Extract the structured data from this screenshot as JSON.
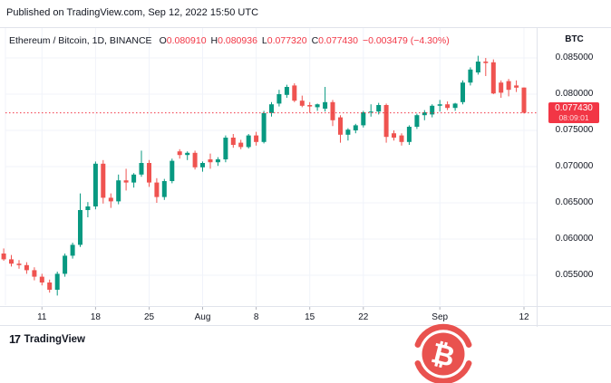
{
  "published_bar": {
    "text": "Published on TradingView.com, Sep 12, 2022 15:50 UTC"
  },
  "legend": {
    "title": "Ethereum / Bitcoin, 1D, BINANCE",
    "ohlc": [
      {
        "label": "O",
        "value": "0.080910"
      },
      {
        "label": "H",
        "value": "0.080936"
      },
      {
        "label": "L",
        "value": "0.077320"
      },
      {
        "label": "C",
        "value": "0.077430"
      }
    ],
    "change": "−0.003479 (−4.30%)"
  },
  "price_axis": {
    "unit": "BTC",
    "tag": {
      "price": "0.077430",
      "countdown": "08:09:01"
    }
  },
  "footer": {
    "logo_mark": "17",
    "logo_text": "TradingView"
  },
  "badge": {
    "symbol": "₿"
  },
  "colors": {
    "up": "#089981",
    "down": "#ef5350",
    "last_price_line": "#f23645",
    "tag_bg": "#f23645",
    "grid": "#f0f3fa",
    "border": "#e0e3eb",
    "tick": "#b2b5be",
    "text": "#131722",
    "badge_red": "#e9524f"
  },
  "chart_data": {
    "type": "candlestick",
    "title": "Ethereum / Bitcoin",
    "interval": "1D",
    "exchange": "BINANCE",
    "unit": "BTC",
    "last_price": 0.07743,
    "ylim": [
      0.0509,
      0.0891
    ],
    "grid": true,
    "y_ticks": [
      0.085,
      0.08,
      0.075,
      0.07,
      0.065,
      0.06,
      0.055
    ],
    "y_tick_labels": [
      "0.085000",
      "0.080000",
      "0.075000",
      "0.070000",
      "0.065000",
      "0.060000",
      "0.055000"
    ],
    "x_ticks": [
      {
        "index": 5,
        "label": "11"
      },
      {
        "index": 12,
        "label": "18"
      },
      {
        "index": 19,
        "label": "25"
      },
      {
        "index": 26,
        "label": "Aug"
      },
      {
        "index": 33,
        "label": "8"
      },
      {
        "index": 40,
        "label": "15"
      },
      {
        "index": 47,
        "label": "22"
      },
      {
        "index": 57,
        "label": "Sep"
      },
      {
        "index": 68,
        "label": "12"
      }
    ],
    "dates": [
      "Jul 6",
      "Jul 7",
      "Jul 8",
      "Jul 9",
      "Jul 10",
      "Jul 11",
      "Jul 12",
      "Jul 13",
      "Jul 14",
      "Jul 15",
      "Jul 16",
      "Jul 17",
      "Jul 18",
      "Jul 19",
      "Jul 20",
      "Jul 21",
      "Jul 22",
      "Jul 23",
      "Jul 24",
      "Jul 25",
      "Jul 26",
      "Jul 27",
      "Jul 28",
      "Jul 29",
      "Jul 30",
      "Jul 31",
      "Aug 1",
      "Aug 2",
      "Aug 3",
      "Aug 4",
      "Aug 5",
      "Aug 6",
      "Aug 7",
      "Aug 8",
      "Aug 9",
      "Aug 10",
      "Aug 11",
      "Aug 12",
      "Aug 13",
      "Aug 14",
      "Aug 15",
      "Aug 16",
      "Aug 17",
      "Aug 18",
      "Aug 19",
      "Aug 20",
      "Aug 21",
      "Aug 22",
      "Aug 23",
      "Aug 24",
      "Aug 25",
      "Aug 26",
      "Aug 27",
      "Aug 28",
      "Aug 29",
      "Aug 30",
      "Aug 31",
      "Sep 1",
      "Sep 2",
      "Sep 3",
      "Sep 4",
      "Sep 5",
      "Sep 6",
      "Sep 7",
      "Sep 8",
      "Sep 9",
      "Sep 10",
      "Sep 11",
      "Sep 12"
    ],
    "candles": [
      [
        0.058,
        0.0587,
        0.057,
        0.0572
      ],
      [
        0.0572,
        0.0578,
        0.0562,
        0.0566
      ],
      [
        0.0566,
        0.0571,
        0.0559,
        0.0564
      ],
      [
        0.0564,
        0.0568,
        0.0552,
        0.0557
      ],
      [
        0.0557,
        0.0561,
        0.0543,
        0.0548
      ],
      [
        0.0548,
        0.0552,
        0.0536,
        0.054
      ],
      [
        0.054,
        0.0544,
        0.0526,
        0.053
      ],
      [
        0.053,
        0.0555,
        0.0522,
        0.0552
      ],
      [
        0.0552,
        0.058,
        0.0548,
        0.0577
      ],
      [
        0.0577,
        0.0595,
        0.0573,
        0.0592
      ],
      [
        0.0592,
        0.0663,
        0.0589,
        0.064
      ],
      [
        0.064,
        0.0651,
        0.063,
        0.0645
      ],
      [
        0.0645,
        0.0707,
        0.0641,
        0.0704
      ],
      [
        0.0704,
        0.0709,
        0.0649,
        0.0657
      ],
      [
        0.0657,
        0.0663,
        0.0643,
        0.0652
      ],
      [
        0.0652,
        0.0689,
        0.0648,
        0.0681
      ],
      [
        0.0681,
        0.0697,
        0.0667,
        0.0678
      ],
      [
        0.0678,
        0.0691,
        0.0671,
        0.0689
      ],
      [
        0.0689,
        0.0722,
        0.0686,
        0.0705
      ],
      [
        0.0705,
        0.0709,
        0.0672,
        0.0678
      ],
      [
        0.0678,
        0.0684,
        0.065,
        0.0658
      ],
      [
        0.0658,
        0.0683,
        0.0654,
        0.068
      ],
      [
        0.068,
        0.0711,
        0.0677,
        0.0708
      ],
      [
        0.0721,
        0.0724,
        0.0711,
        0.0716
      ],
      [
        0.0716,
        0.0721,
        0.0709,
        0.0719
      ],
      [
        0.0719,
        0.0722,
        0.0696,
        0.0699
      ],
      [
        0.0699,
        0.0707,
        0.0693,
        0.0705
      ],
      [
        0.071,
        0.0718,
        0.0697,
        0.0706
      ],
      [
        0.0706,
        0.0713,
        0.0701,
        0.071
      ],
      [
        0.071,
        0.0743,
        0.0706,
        0.074
      ],
      [
        0.074,
        0.0745,
        0.0726,
        0.073
      ],
      [
        0.0733,
        0.0737,
        0.0724,
        0.0727
      ],
      [
        0.0727,
        0.0745,
        0.0725,
        0.0743
      ],
      [
        0.0743,
        0.0748,
        0.0729,
        0.0734
      ],
      [
        0.0734,
        0.0777,
        0.0732,
        0.0774
      ],
      [
        0.0774,
        0.0789,
        0.0769,
        0.0786
      ],
      [
        0.0787,
        0.0806,
        0.0783,
        0.08
      ],
      [
        0.0799,
        0.0813,
        0.0795,
        0.081
      ],
      [
        0.0812,
        0.0815,
        0.0789,
        0.0791
      ],
      [
        0.0791,
        0.0798,
        0.0782,
        0.0784
      ],
      [
        0.0785,
        0.0789,
        0.0774,
        0.0783
      ],
      [
        0.0782,
        0.0787,
        0.0777,
        0.0786
      ],
      [
        0.078,
        0.081,
        0.0776,
        0.0789
      ],
      [
        0.0789,
        0.0792,
        0.0756,
        0.0764
      ],
      [
        0.0768,
        0.0771,
        0.0733,
        0.0744
      ],
      [
        0.0744,
        0.0753,
        0.0736,
        0.0751
      ],
      [
        0.075,
        0.0759,
        0.0746,
        0.0757
      ],
      [
        0.0757,
        0.0777,
        0.0754,
        0.0775
      ],
      [
        0.0775,
        0.0786,
        0.0769,
        0.0776
      ],
      [
        0.0776,
        0.0788,
        0.0772,
        0.0785
      ],
      [
        0.0785,
        0.0787,
        0.0733,
        0.0741
      ],
      [
        0.0746,
        0.075,
        0.0736,
        0.074
      ],
      [
        0.0743,
        0.0746,
        0.0729,
        0.0734
      ],
      [
        0.0734,
        0.0757,
        0.073,
        0.0755
      ],
      [
        0.0755,
        0.0773,
        0.0752,
        0.0771
      ],
      [
        0.0771,
        0.0778,
        0.0764,
        0.0775
      ],
      [
        0.0772,
        0.0786,
        0.0768,
        0.0784
      ],
      [
        0.0784,
        0.0792,
        0.0776,
        0.0786
      ],
      [
        0.0786,
        0.079,
        0.0778,
        0.0781
      ],
      [
        0.0781,
        0.0788,
        0.0777,
        0.0787
      ],
      [
        0.0789,
        0.0819,
        0.0786,
        0.0816
      ],
      [
        0.0816,
        0.0837,
        0.0812,
        0.0834
      ],
      [
        0.083,
        0.0853,
        0.0827,
        0.0845
      ],
      [
        0.0845,
        0.085,
        0.0825,
        0.0843
      ],
      [
        0.0844,
        0.0848,
        0.08,
        0.0801
      ],
      [
        0.0816,
        0.0819,
        0.0795,
        0.0802
      ],
      [
        0.0818,
        0.0821,
        0.0797,
        0.0806
      ],
      [
        0.0812,
        0.0819,
        0.0803,
        0.0809
      ],
      [
        0.08091,
        0.080936,
        0.07732,
        0.07743
      ]
    ]
  }
}
